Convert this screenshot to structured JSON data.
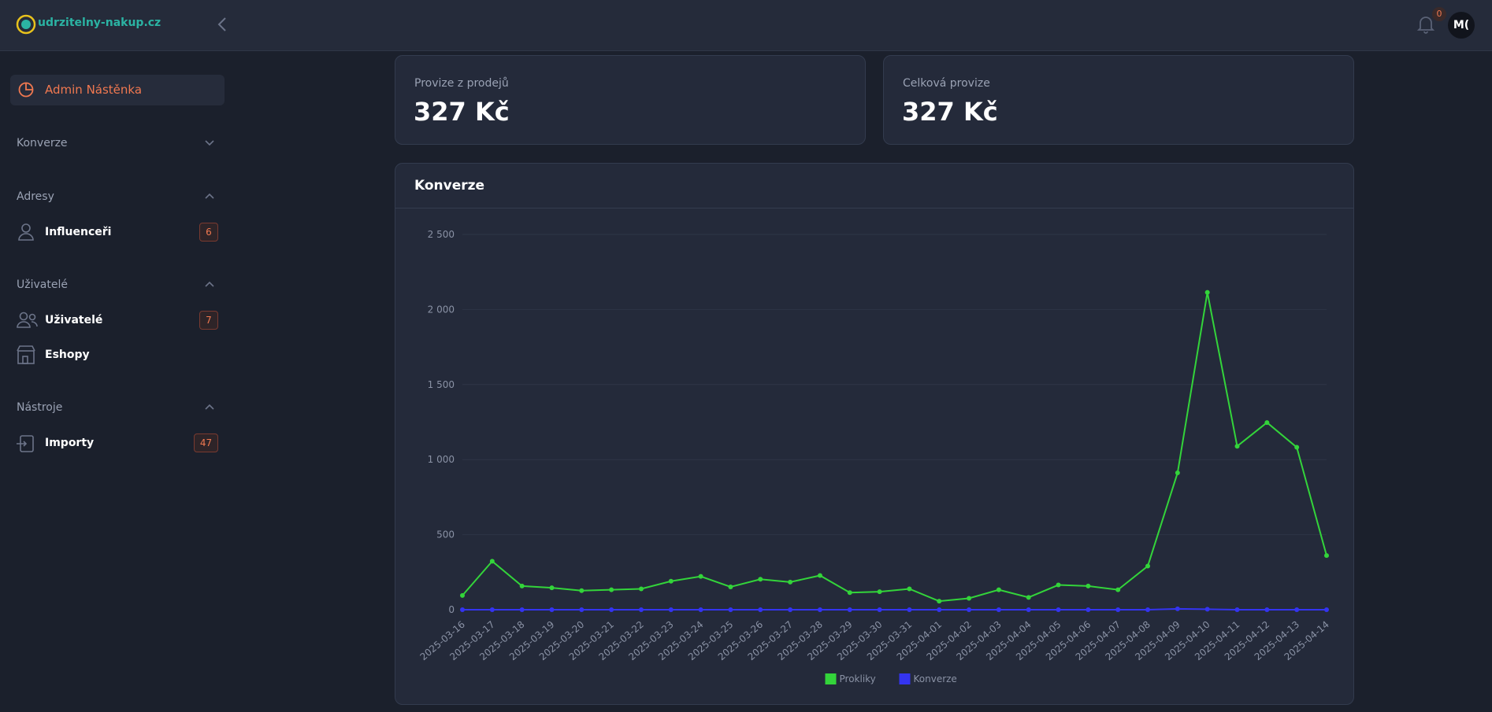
{
  "header": {
    "logo": "udrzitelny-nakup.cz",
    "notifications": "0",
    "avatar": "M("
  },
  "sidebar": {
    "active": "Admin Nástěnka",
    "sections": [
      {
        "title": "Konverze"
      },
      {
        "title": "Adresy",
        "items": [
          {
            "label": "Influenceři",
            "badge": "6"
          }
        ]
      },
      {
        "title": "Uživatelé",
        "items": [
          {
            "label": "Uživatelé",
            "badge": "7"
          },
          {
            "label": "Eshopy"
          }
        ]
      },
      {
        "title": "Nástroje",
        "items": [
          {
            "label": "Importy",
            "badge": "47"
          }
        ]
      }
    ]
  },
  "cards": [
    {
      "label": "Provize z prodejů",
      "value": "327 Kč"
    },
    {
      "label": "Celková provize",
      "value": "327 Kč"
    }
  ],
  "chart_data": {
    "type": "line",
    "title": "Konverze",
    "categories": [
      "2025-03-16",
      "2025-03-17",
      "2025-03-18",
      "2025-03-19",
      "2025-03-20",
      "2025-03-21",
      "2025-03-22",
      "2025-03-23",
      "2025-03-24",
      "2025-03-25",
      "2025-03-26",
      "2025-03-27",
      "2025-03-28",
      "2025-03-29",
      "2025-03-30",
      "2025-03-31",
      "2025-04-01",
      "2025-04-02",
      "2025-04-03",
      "2025-04-04",
      "2025-04-05",
      "2025-04-06",
      "2025-04-07",
      "2025-04-08",
      "2025-04-09",
      "2025-04-10",
      "2025-04-11",
      "2025-04-12",
      "2025-04-13",
      "2025-04-14"
    ],
    "series": [
      {
        "name": "Prokliky",
        "color": "#33d43a",
        "values": [
          95,
          323,
          158,
          146,
          127,
          133,
          139,
          190,
          222,
          152,
          203,
          184,
          228,
          114,
          120,
          139,
          57,
          76,
          133,
          82,
          165,
          158,
          133,
          291,
          912,
          2114,
          1089,
          1247,
          1082,
          361
        ]
      },
      {
        "name": "Konverze",
        "color": "#3434f0",
        "values": [
          0,
          0,
          0,
          0,
          0,
          0,
          0,
          0,
          0,
          0,
          0,
          0,
          0,
          0,
          0,
          0,
          0,
          0,
          0,
          0,
          0,
          0,
          0,
          0,
          6,
          3,
          0,
          0,
          0,
          0
        ]
      }
    ],
    "ylim": [
      0,
      2500
    ],
    "yticks": [
      0,
      500,
      {
        "value": 1000,
        "label": "1 000"
      },
      {
        "value": 1500,
        "label": "1 500"
      },
      {
        "value": 2000,
        "label": "2 000"
      },
      {
        "value": 2500,
        "label": "2 500"
      }
    ],
    "grid": true,
    "legend": "bottom"
  }
}
